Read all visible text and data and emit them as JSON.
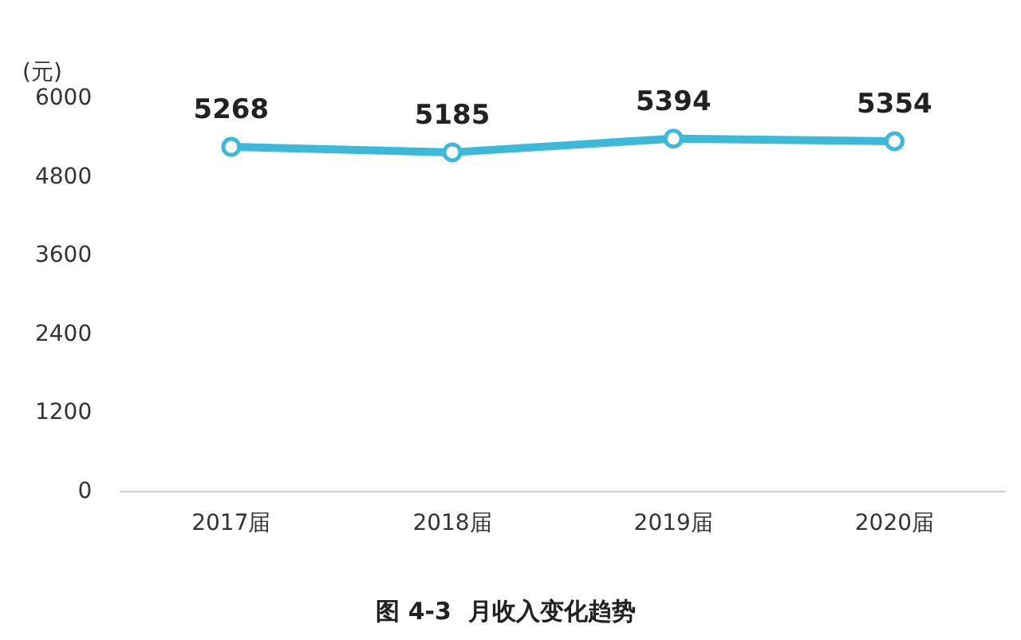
{
  "chart_data": {
    "type": "line",
    "title": "图 4-3  月收入变化趋势",
    "ylabel": "(元)",
    "categories": [
      "2017届",
      "2018届",
      "2019届",
      "2020届"
    ],
    "series": [
      {
        "color": "#3cb9d9",
        "values": [
          5268,
          5185,
          5394,
          5354
        ]
      }
    ],
    "ylim": [
      0,
      6000
    ],
    "yticks": [
      0,
      1200,
      2400,
      3600,
      4800,
      6000
    ],
    "grid": false,
    "legend": false,
    "marker": "circle",
    "line_style": "solid",
    "data_labels": true
  }
}
